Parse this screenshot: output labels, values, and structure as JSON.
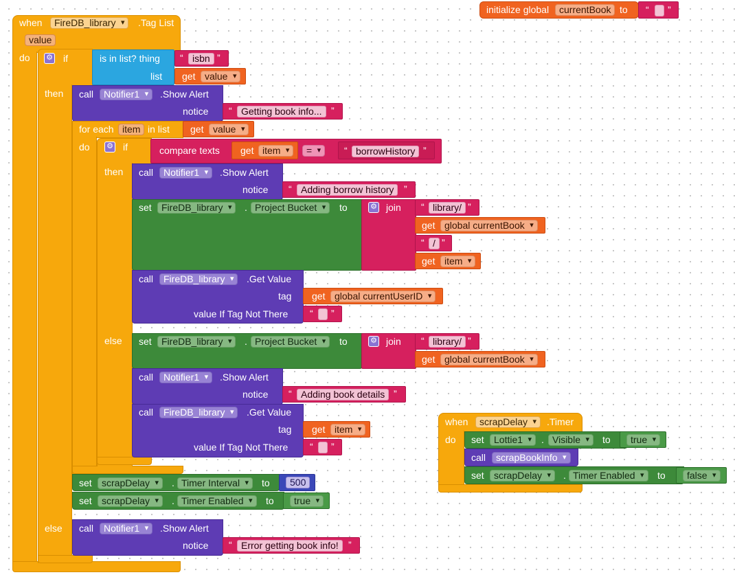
{
  "colors": {
    "control": "#f7a80c",
    "component": "#5e3cb4",
    "setter": "#3d8a3a",
    "text": "#d6205e",
    "variable": "#f06320",
    "list": "#2ba6e0"
  },
  "main_event": {
    "when": "when",
    "component": "FireDB_library",
    "event": ".Tag List",
    "param": "value",
    "do": "do"
  },
  "if1": {
    "if": "if",
    "then": "then",
    "else": "else",
    "gear_icon": "gear-icon"
  },
  "is_in_list": {
    "label": "is in list? thing",
    "list": "list",
    "isbn": "isbn",
    "get": "get",
    "value": "value"
  },
  "alert1": {
    "call": "call",
    "component": "Notifier1",
    "method": ".Show Alert",
    "notice": "notice",
    "text": "Getting book info..."
  },
  "foreach": {
    "label": "for each",
    "item": "item",
    "in_list": "in list",
    "get": "get",
    "value": "value",
    "do": "do"
  },
  "if2": {
    "if": "if",
    "then": "then",
    "else": "else"
  },
  "compare": {
    "label": "compare texts",
    "get": "get",
    "item": "item",
    "op": "=",
    "text": "borrowHistory"
  },
  "alert2": {
    "call": "call",
    "component": "Notifier1",
    "method": ".Show Alert",
    "notice": "notice",
    "text": "Adding borrow history"
  },
  "set1": {
    "set": "set",
    "component": "FireDB_library",
    "dot": ".",
    "prop": "Project Bucket",
    "to": "to",
    "join": "join",
    "s1": "library/",
    "get": "get",
    "global": "global currentBook",
    "s2": "/",
    "item": "item"
  },
  "getval1": {
    "call": "call",
    "component": "FireDB_library",
    "method": ".Get Value",
    "tag": "tag",
    "get": "get",
    "global": "global currentUserID",
    "notthere": "value If Tag Not There"
  },
  "set2": {
    "set": "set",
    "component": "FireDB_library",
    "dot": ".",
    "prop": "Project Bucket",
    "to": "to",
    "join": "join",
    "s1": "library/",
    "get": "get",
    "global": "global currentBook"
  },
  "alert3": {
    "call": "call",
    "component": "Notifier1",
    "method": ".Show Alert",
    "notice": "notice",
    "text": "Adding book details"
  },
  "getval2": {
    "call": "call",
    "component": "FireDB_library",
    "method": ".Get Value",
    "tag": "tag",
    "get": "get",
    "item": "item",
    "notthere": "value If Tag Not There"
  },
  "set3": {
    "set": "set",
    "component": "scrapDelay",
    "dot": ".",
    "prop": "Timer Interval",
    "to": "to",
    "value": "500"
  },
  "set4": {
    "set": "set",
    "component": "scrapDelay",
    "dot": ".",
    "prop": "Timer Enabled",
    "to": "to",
    "value": "true"
  },
  "alert4": {
    "call": "call",
    "component": "Notifier1",
    "method": ".Show Alert",
    "notice": "notice",
    "text": "Error getting book info!"
  },
  "init": {
    "label": "initialize global",
    "name": "currentBook",
    "to": "to"
  },
  "timer_event": {
    "when": "when",
    "component": "scrapDelay",
    "event": ".Timer",
    "do": "do",
    "set": "set",
    "lottie": "Lottie1",
    "dot": ".",
    "visible": "Visible",
    "to": "to",
    "true": "true",
    "call": "call",
    "proc": "scrapBookInfo",
    "component2": "scrapDelay",
    "enabled": "Timer Enabled",
    "false": "false"
  }
}
